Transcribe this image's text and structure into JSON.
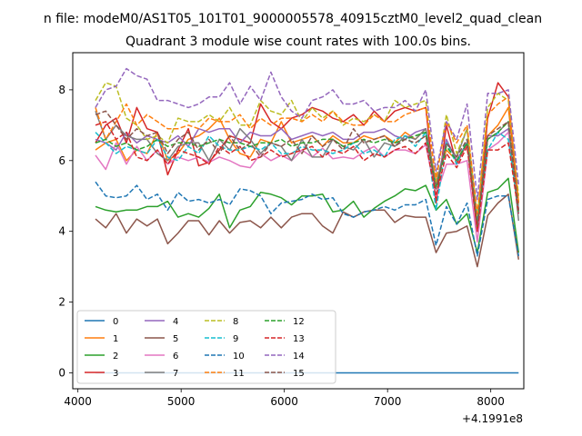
{
  "suptitle": "n file: modeM0/AS1T05_101T01_9000005578_40915cztM0_level2_quad_clean",
  "chart_data": {
    "type": "line",
    "title": "Quadrant 3 module wise count rates with 100.0s bins.",
    "xlabel": "",
    "ylabel": "",
    "x_offset_label": "+4.1991e8",
    "x_ticks": [
      4000,
      5000,
      6000,
      7000,
      8000
    ],
    "y_ticks": [
      0,
      2,
      4,
      6,
      8
    ],
    "xlim": [
      3950,
      8320
    ],
    "ylim": [
      -0.45,
      9.05
    ],
    "grid": false,
    "legend_placement": "lower-left",
    "x": [
      4170,
      4270,
      4370,
      4470,
      4570,
      4670,
      4770,
      4870,
      4970,
      5070,
      5170,
      5270,
      5370,
      5470,
      5570,
      5670,
      5770,
      5870,
      5970,
      6070,
      6170,
      6270,
      6370,
      6470,
      6570,
      6670,
      6770,
      6870,
      6970,
      7070,
      7170,
      7270,
      7370,
      7470,
      7570,
      7670,
      7770,
      7870,
      7970,
      8070,
      8170,
      8270
    ],
    "series": [
      {
        "name": "0",
        "color": "#1f77b4",
        "dash": "solid",
        "values": [
          0,
          0,
          0,
          0,
          0,
          0,
          0,
          0,
          0,
          0,
          0,
          0,
          0,
          0,
          0,
          0,
          0,
          0,
          0,
          0,
          0,
          0,
          0,
          0,
          0,
          0,
          0,
          0,
          0,
          0,
          0,
          0,
          0,
          0,
          0,
          0,
          0,
          0,
          0,
          0,
          0,
          0
        ]
      },
      {
        "name": "1",
        "color": "#ff7f0e",
        "dash": "solid",
        "values": [
          6.3,
          6.5,
          6.6,
          6.0,
          6.3,
          6.2,
          6.8,
          6.0,
          6.2,
          6.6,
          6.7,
          6.9,
          7.2,
          6.6,
          6.2,
          6.1,
          6.6,
          6.5,
          7.1,
          6.5,
          6.6,
          6.7,
          6.4,
          6.7,
          6.5,
          6.5,
          6.7,
          6.6,
          6.7,
          6.5,
          6.8,
          6.6,
          6.9,
          5.4,
          6.3,
          6.0,
          6.5,
          4.1,
          6.7,
          7.0,
          7.5,
          4.8
        ]
      },
      {
        "name": "2",
        "color": "#2ca02c",
        "dash": "solid",
        "values": [
          4.7,
          4.6,
          4.55,
          4.6,
          4.6,
          4.7,
          4.7,
          4.85,
          4.4,
          4.5,
          4.4,
          4.65,
          5.05,
          4.1,
          4.6,
          4.7,
          5.1,
          5.05,
          4.95,
          4.75,
          5.0,
          5.0,
          5.05,
          4.55,
          4.6,
          4.85,
          4.4,
          4.65,
          4.85,
          5.0,
          5.2,
          5.15,
          5.3,
          4.6,
          4.9,
          4.2,
          4.5,
          3.4,
          5.1,
          5.2,
          5.5,
          3.4
        ]
      },
      {
        "name": "3",
        "color": "#d62728",
        "dash": "solid",
        "values": [
          6.5,
          7.0,
          7.2,
          6.5,
          7.5,
          6.9,
          6.8,
          5.6,
          6.3,
          6.9,
          5.85,
          5.95,
          6.3,
          6.7,
          6.6,
          6.5,
          7.6,
          7.1,
          6.9,
          7.2,
          7.3,
          7.5,
          7.4,
          7.2,
          7.1,
          7.3,
          7.0,
          7.4,
          7.1,
          7.4,
          7.5,
          7.4,
          7.5,
          4.8,
          7.0,
          5.9,
          6.5,
          4.0,
          7.2,
          8.2,
          7.8,
          4.6
        ]
      },
      {
        "name": "4",
        "color": "#9467bd",
        "dash": "solid",
        "values": [
          6.6,
          6.5,
          6.3,
          6.8,
          6.5,
          6.7,
          6.6,
          6.5,
          6.7,
          6.4,
          6.9,
          6.8,
          6.9,
          6.9,
          6.5,
          6.8,
          6.7,
          6.7,
          6.9,
          6.6,
          6.7,
          6.8,
          6.7,
          6.8,
          6.6,
          6.6,
          6.8,
          6.8,
          6.9,
          6.7,
          6.6,
          6.8,
          6.9,
          5.3,
          6.6,
          6.0,
          6.5,
          4.2,
          6.7,
          6.7,
          6.9,
          4.5
        ]
      },
      {
        "name": "5",
        "color": "#8c564b",
        "dash": "solid",
        "values": [
          4.35,
          4.1,
          4.5,
          3.95,
          4.35,
          4.15,
          4.35,
          3.65,
          3.95,
          4.3,
          4.3,
          3.9,
          4.3,
          3.95,
          4.25,
          4.3,
          4.1,
          4.4,
          4.1,
          4.4,
          4.5,
          4.5,
          4.15,
          3.95,
          4.55,
          4.4,
          4.55,
          4.6,
          4.6,
          4.25,
          4.45,
          4.4,
          4.4,
          3.4,
          3.95,
          4.0,
          4.15,
          3.0,
          4.45,
          4.8,
          5.05,
          3.2
        ]
      },
      {
        "name": "6",
        "color": "#e377c2",
        "dash": "solid",
        "values": [
          6.15,
          5.75,
          6.5,
          5.9,
          6.4,
          6.0,
          6.3,
          5.9,
          6.1,
          6.0,
          6.1,
          5.95,
          6.1,
          6.0,
          5.85,
          5.8,
          6.2,
          6.0,
          6.15,
          6.0,
          6.3,
          6.1,
          6.35,
          6.05,
          6.1,
          6.05,
          6.25,
          6.4,
          6.1,
          6.3,
          6.3,
          6.2,
          6.45,
          5.0,
          5.9,
          5.9,
          6.0,
          3.7,
          6.3,
          6.5,
          6.8,
          4.6
        ]
      },
      {
        "name": "7",
        "color": "#7f7f7f",
        "dash": "solid",
        "values": [
          7.4,
          6.6,
          7.0,
          6.7,
          6.6,
          6.6,
          6.2,
          6.0,
          6.4,
          6.5,
          6.5,
          6.0,
          6.6,
          6.3,
          6.9,
          6.6,
          6.2,
          6.5,
          6.4,
          6.0,
          6.6,
          6.1,
          6.1,
          6.6,
          6.4,
          6.3,
          6.6,
          6.1,
          6.5,
          6.4,
          6.7,
          6.6,
          6.9,
          5.3,
          6.5,
          6.1,
          6.9,
          4.4,
          6.6,
          6.8,
          7.1,
          4.3
        ]
      },
      {
        "name": "8",
        "color": "#bcbd22",
        "dash": "dashed",
        "values": [
          7.7,
          8.2,
          8.1,
          7.2,
          7.0,
          6.6,
          6.7,
          6.5,
          7.2,
          7.1,
          7.1,
          7.3,
          7.1,
          7.5,
          7.0,
          7.0,
          7.7,
          7.4,
          7.3,
          7.7,
          7.1,
          7.5,
          7.2,
          7.4,
          7.0,
          7.2,
          7.1,
          7.3,
          7.1,
          7.7,
          7.5,
          7.6,
          7.7,
          5.4,
          7.3,
          6.2,
          6.9,
          4.4,
          7.5,
          7.9,
          7.7,
          5.0
        ]
      },
      {
        "name": "9",
        "color": "#17becf",
        "dash": "dashed",
        "values": [
          6.8,
          6.5,
          6.2,
          6.4,
          6.3,
          6.2,
          6.6,
          6.1,
          6.0,
          6.4,
          6.2,
          6.7,
          6.4,
          6.3,
          6.3,
          6.4,
          6.3,
          6.5,
          6.2,
          6.2,
          6.4,
          6.3,
          6.3,
          6.2,
          6.3,
          6.5,
          6.2,
          6.3,
          6.1,
          6.6,
          6.7,
          6.4,
          6.8,
          4.6,
          6.5,
          5.9,
          6.6,
          4.3,
          6.3,
          6.8,
          6.6,
          4.6
        ]
      },
      {
        "name": "10",
        "color": "#1f77b4",
        "dash": "dashed",
        "values": [
          5.4,
          5.0,
          4.95,
          5.0,
          5.3,
          4.9,
          5.05,
          4.6,
          5.1,
          4.85,
          4.9,
          4.8,
          4.9,
          4.75,
          5.2,
          5.15,
          5.0,
          4.5,
          4.8,
          4.85,
          4.9,
          5.05,
          4.9,
          4.95,
          4.5,
          4.4,
          4.55,
          4.6,
          4.7,
          4.6,
          4.75,
          4.75,
          4.9,
          3.6,
          4.7,
          4.2,
          4.8,
          3.3,
          4.9,
          5.0,
          5.0,
          3.3
        ]
      },
      {
        "name": "11",
        "color": "#ff7f0e",
        "dash": "dashed",
        "values": [
          7.5,
          6.6,
          7.1,
          7.6,
          7.0,
          7.3,
          7.1,
          6.9,
          6.9,
          7.0,
          6.9,
          7.2,
          7.1,
          7.1,
          7.3,
          6.9,
          7.2,
          7.0,
          7.2,
          7.2,
          7.1,
          7.3,
          7.1,
          7.4,
          7.1,
          7.0,
          7.0,
          7.3,
          7.1,
          7.1,
          7.3,
          7.4,
          7.5,
          5.5,
          7.1,
          6.5,
          7.0,
          4.5,
          7.3,
          7.6,
          7.8,
          4.8
        ]
      },
      {
        "name": "12",
        "color": "#2ca02c",
        "dash": "dashed",
        "values": [
          6.5,
          6.6,
          6.4,
          6.5,
          6.3,
          6.4,
          6.6,
          6.4,
          6.5,
          6.5,
          6.4,
          6.5,
          6.6,
          6.5,
          6.5,
          6.4,
          6.5,
          6.5,
          6.6,
          6.4,
          6.5,
          6.5,
          6.6,
          6.6,
          6.4,
          6.5,
          6.6,
          6.5,
          6.6,
          6.5,
          6.6,
          6.7,
          6.8,
          5.2,
          6.4,
          6.0,
          6.5,
          4.1,
          6.6,
          6.8,
          7.1,
          4.5
        ]
      },
      {
        "name": "13",
        "color": "#d62728",
        "dash": "dashed",
        "values": [
          7.0,
          7.1,
          6.6,
          6.8,
          6.1,
          6.0,
          6.3,
          5.9,
          6.3,
          6.2,
          6.1,
          5.9,
          6.4,
          6.2,
          6.4,
          6.0,
          6.1,
          6.3,
          6.1,
          6.2,
          6.3,
          6.4,
          6.1,
          6.3,
          6.2,
          6.4,
          6.0,
          6.2,
          6.1,
          6.3,
          6.4,
          6.2,
          6.5,
          5.0,
          6.2,
          5.8,
          6.4,
          4.0,
          6.3,
          6.3,
          6.5,
          4.5
        ]
      },
      {
        "name": "14",
        "color": "#9467bd",
        "dash": "dashed",
        "values": [
          7.5,
          8.0,
          8.1,
          8.6,
          8.4,
          8.3,
          7.7,
          7.7,
          7.6,
          7.5,
          7.6,
          7.8,
          7.8,
          8.2,
          7.6,
          8.1,
          7.7,
          8.5,
          7.8,
          7.4,
          7.2,
          7.7,
          7.8,
          8.0,
          7.6,
          7.6,
          7.7,
          7.4,
          7.5,
          7.5,
          7.7,
          7.4,
          8.0,
          5.7,
          7.1,
          6.6,
          7.6,
          4.9,
          7.9,
          7.9,
          8.0,
          5.3
        ]
      },
      {
        "name": "15",
        "color": "#8c564b",
        "dash": "dashed",
        "values": [
          7.3,
          7.4,
          7.0,
          6.6,
          6.9,
          6.7,
          6.8,
          6.2,
          6.6,
          6.8,
          6.3,
          6.6,
          6.2,
          6.7,
          6.3,
          6.5,
          6.1,
          6.5,
          6.4,
          6.6,
          6.2,
          6.7,
          6.4,
          6.6,
          6.3,
          6.9,
          6.5,
          6.6,
          6.7,
          6.4,
          6.6,
          6.5,
          6.7,
          5.2,
          6.5,
          6.1,
          6.6,
          4.2,
          6.7,
          6.9,
          7.1,
          4.6
        ]
      }
    ]
  }
}
